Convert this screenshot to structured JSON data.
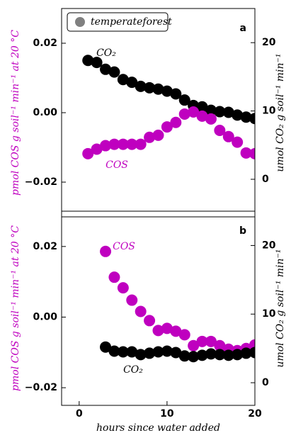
{
  "chart_data": [
    {
      "type": "scatter",
      "panel_label": "a",
      "legend_label": "temperateforest",
      "legend_color": "#808080",
      "ylabel": "pmol COS g  soil⁻¹  min⁻¹  at 20 °C",
      "y2label": "umol CO₂ g  soil⁻¹  min⁻¹",
      "xlim": [
        -2,
        20
      ],
      "ylim": [
        -0.03,
        0.03
      ],
      "yticks": [
        {
          "value": -0.02,
          "label": "−0.02"
        },
        {
          "value": 0,
          "label": "0.00"
        },
        0.02
      ],
      "y2lim": [
        -5.5,
        25
      ],
      "y2ticks": [
        0,
        10,
        20
      ],
      "series": [
        {
          "name": "CO₂",
          "color": "#000000",
          "axis": "y2",
          "x": [
            1,
            2,
            3,
            4,
            5,
            6,
            7,
            8,
            9,
            10,
            11,
            12,
            13,
            14,
            15,
            16,
            17,
            18,
            19,
            20
          ],
          "values": [
            17.4,
            17.1,
            16.1,
            15.7,
            14.6,
            14.2,
            13.6,
            13.4,
            13.2,
            12.9,
            12.5,
            11.6,
            10.8,
            10.6,
            10.1,
            9.9,
            9.8,
            9.4,
            9.1,
            8.9
          ]
        },
        {
          "name": "COS",
          "color": "#bf00bf",
          "x": [
            1,
            2,
            3,
            4,
            5,
            6,
            7,
            8,
            9,
            10,
            11,
            12,
            13,
            14,
            15,
            16,
            17,
            18,
            19,
            20
          ],
          "values": [
            -0.0118,
            -0.0105,
            -0.0095,
            -0.0091,
            -0.0091,
            -0.0091,
            -0.0091,
            -0.0071,
            -0.0065,
            -0.0041,
            -0.0028,
            -0.0004,
            0.0002,
            -0.001,
            -0.0018,
            -0.0051,
            -0.0069,
            -0.0085,
            -0.0116,
            -0.0118
          ]
        }
      ]
    },
    {
      "type": "scatter",
      "panel_label": "b",
      "ylabel": "pmol COS g  soil⁻¹  min⁻¹  at 20 °C",
      "y2label": "umol CO₂ g  soil⁻¹  min⁻¹",
      "xlabel": "hours since water added",
      "xlim": [
        -2,
        20
      ],
      "xticks": [
        0,
        10,
        20
      ],
      "ylim": [
        -0.025,
        0.03
      ],
      "yticks": [
        {
          "value": -0.02,
          "label": "−0.02"
        },
        {
          "value": 0,
          "label": "0.00"
        },
        0.02
      ],
      "y2lim": [
        -3.3,
        25
      ],
      "y2ticks": [
        0,
        10,
        20
      ],
      "series": [
        {
          "name": "COS",
          "color": "#bf00bf",
          "x": [
            3,
            4,
            5,
            6,
            7,
            8,
            9,
            10,
            11,
            12,
            13,
            14,
            15,
            16,
            17,
            18,
            19,
            20
          ],
          "values": [
            0.0186,
            0.0113,
            0.0083,
            0.0048,
            0.0016,
            -0.001,
            -0.0038,
            -0.0032,
            -0.004,
            -0.005,
            -0.0081,
            -0.0069,
            -0.0069,
            -0.0081,
            -0.0091,
            -0.0095,
            -0.0089,
            -0.0079
          ]
        },
        {
          "name": "CO₂",
          "color": "#000000",
          "axis": "y2",
          "x": [
            3,
            4,
            5,
            6,
            7,
            8,
            9,
            10,
            11,
            12,
            13,
            14,
            15,
            16,
            17,
            18,
            19,
            20
          ],
          "values": [
            5.2,
            4.6,
            4.5,
            4.5,
            4.1,
            4.3,
            4.5,
            4.6,
            4.4,
            3.9,
            3.8,
            4.0,
            4.2,
            4.1,
            4.0,
            4.1,
            4.3,
            4.4
          ]
        }
      ]
    }
  ]
}
